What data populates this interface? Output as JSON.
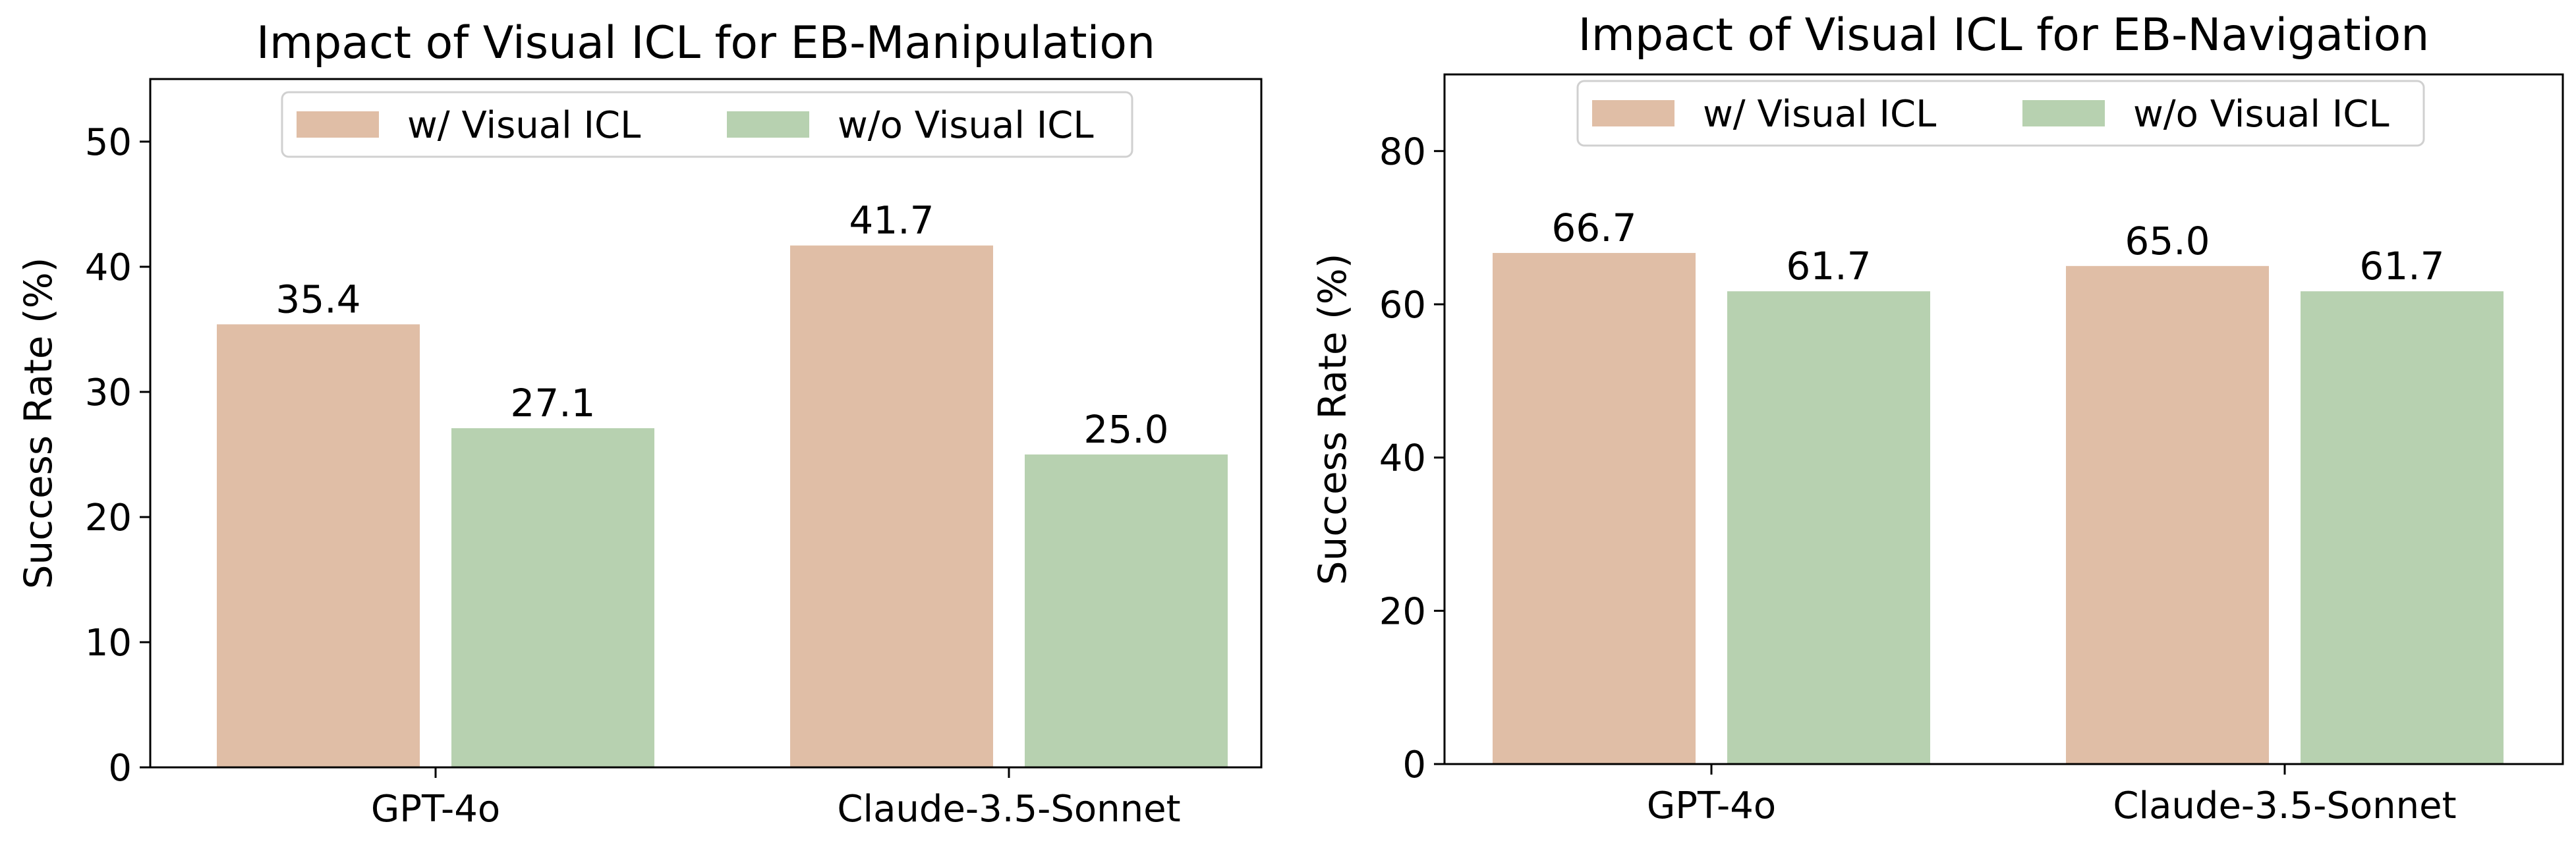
{
  "chart_data": [
    {
      "type": "bar",
      "title": "Impact of Visual ICL for EB-Manipulation",
      "xlabel": "",
      "ylabel": "Success Rate (%)",
      "categories": [
        "GPT-4o",
        "Claude-3.5-Sonnet"
      ],
      "series": [
        {
          "name": "w/ Visual ICL",
          "values": [
            35.4,
            41.7
          ],
          "color": "#e0bea6"
        },
        {
          "name": "w/o Visual ICL",
          "values": [
            27.1,
            25.0
          ],
          "color": "#b7d1b0"
        }
      ],
      "ylim": [
        0,
        55
      ],
      "yticks": [
        0,
        10,
        20,
        30,
        40,
        50
      ],
      "data_labels": [
        [
          "35.4",
          "41.7"
        ],
        [
          "27.1",
          "25.0"
        ]
      ],
      "legend": "top-center",
      "grid": false
    },
    {
      "type": "bar",
      "title": "Impact of Visual ICL for EB-Navigation",
      "xlabel": "",
      "ylabel": "Success Rate (%)",
      "categories": [
        "GPT-4o",
        "Claude-3.5-Sonnet"
      ],
      "series": [
        {
          "name": "w/ Visual ICL",
          "values": [
            66.7,
            65.0
          ],
          "color": "#e0bea6"
        },
        {
          "name": "w/o Visual ICL",
          "values": [
            61.7,
            61.7
          ],
          "color": "#b7d1b0"
        }
      ],
      "ylim": [
        0,
        90
      ],
      "yticks": [
        0,
        20,
        40,
        60,
        80
      ],
      "data_labels": [
        [
          "66.7",
          "65.0"
        ],
        [
          "61.7",
          "61.7"
        ]
      ],
      "legend": "top-center",
      "grid": false
    }
  ]
}
